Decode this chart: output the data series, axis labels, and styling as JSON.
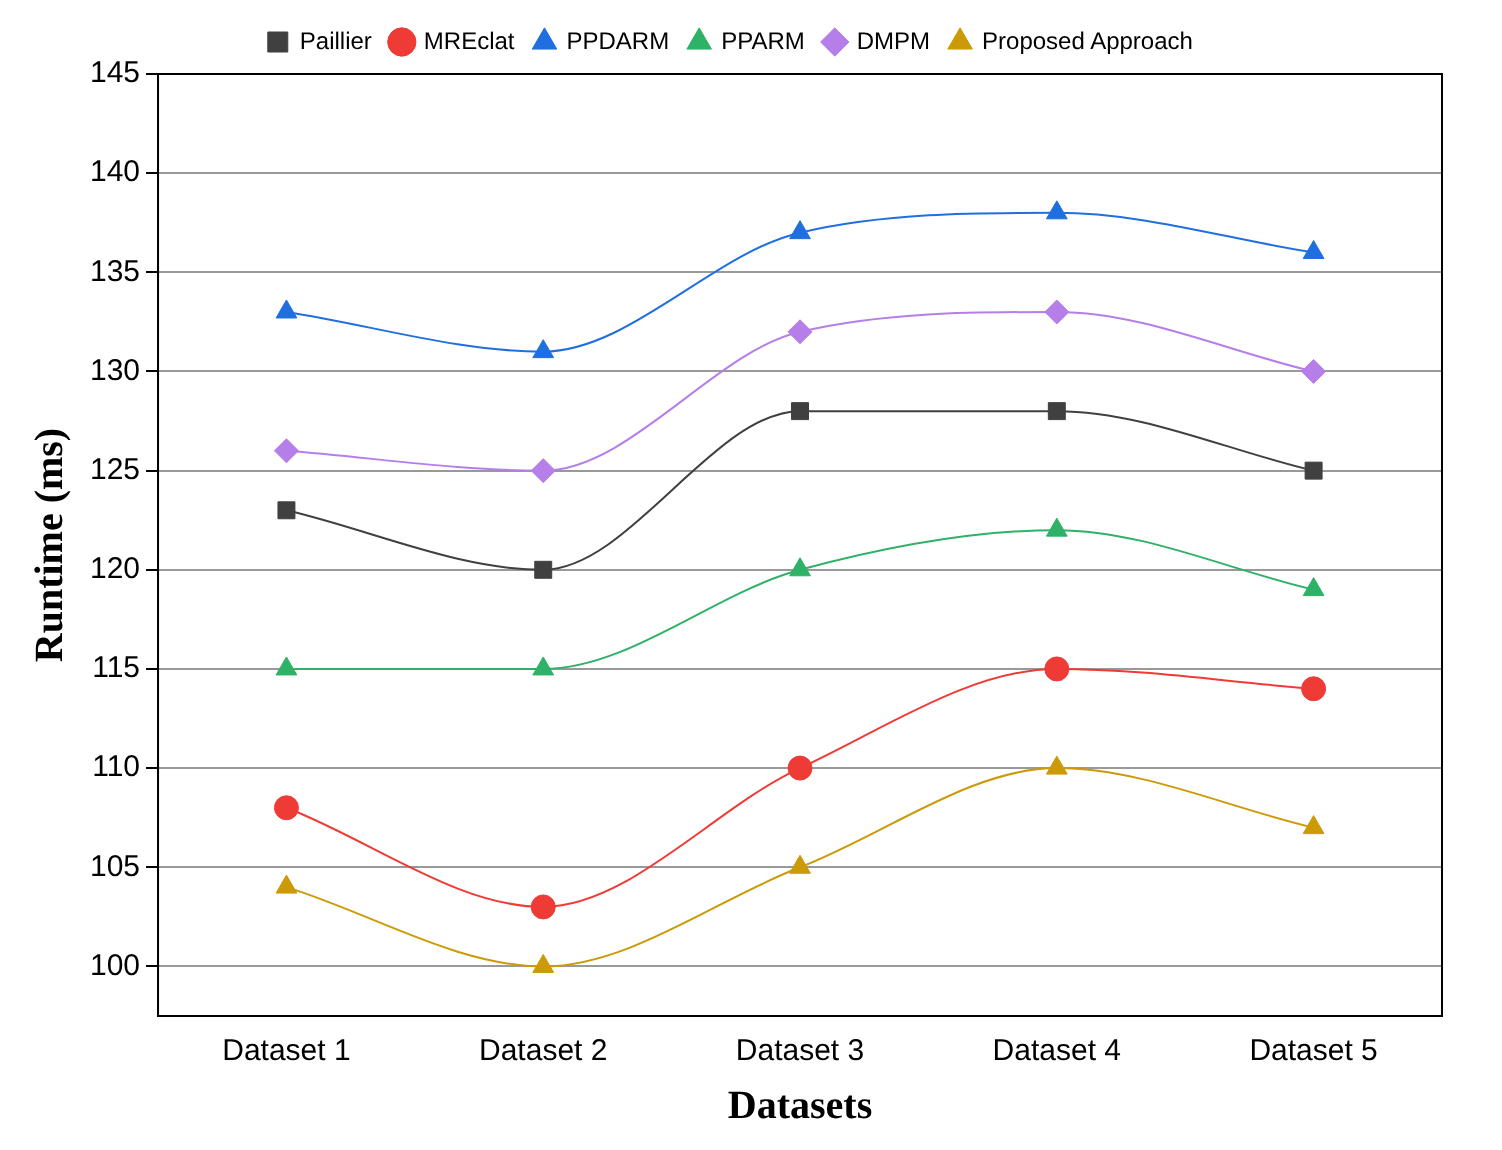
{
  "chart_data": {
    "type": "line",
    "xlabel": "Datasets",
    "ylabel": "Runtime (ms)",
    "categories": [
      "Dataset 1",
      "Dataset 2",
      "Dataset 3",
      "Dataset 4",
      "Dataset 5"
    ],
    "series": [
      {
        "name": "Paillier",
        "color": "#404040",
        "marker": "square",
        "values": [
          123,
          120,
          128,
          128,
          125
        ]
      },
      {
        "name": "MREclat",
        "color": "#ef3b36",
        "marker": "circle",
        "values": [
          108,
          103,
          110,
          115,
          114
        ]
      },
      {
        "name": "PPDARM",
        "color": "#1f6fe0",
        "marker": "triangle",
        "values": [
          133,
          131,
          137,
          138,
          136
        ]
      },
      {
        "name": "PPARM",
        "color": "#2db267",
        "marker": "triangle",
        "values": [
          115,
          115,
          120,
          122,
          119
        ]
      },
      {
        "name": "DMPM",
        "color": "#b57ee8",
        "marker": "diamond",
        "values": [
          126,
          125,
          132,
          133,
          130
        ]
      },
      {
        "name": "Proposed Approach",
        "color": "#cc9a06",
        "marker": "triangle",
        "values": [
          104,
          100,
          105,
          110,
          107
        ]
      }
    ],
    "ylim": [
      97.5,
      145
    ],
    "yticks": [
      100,
      105,
      110,
      115,
      120,
      125,
      130,
      135,
      140,
      145
    ],
    "grid": "y",
    "legend": "top",
    "line_style": "solid"
  }
}
